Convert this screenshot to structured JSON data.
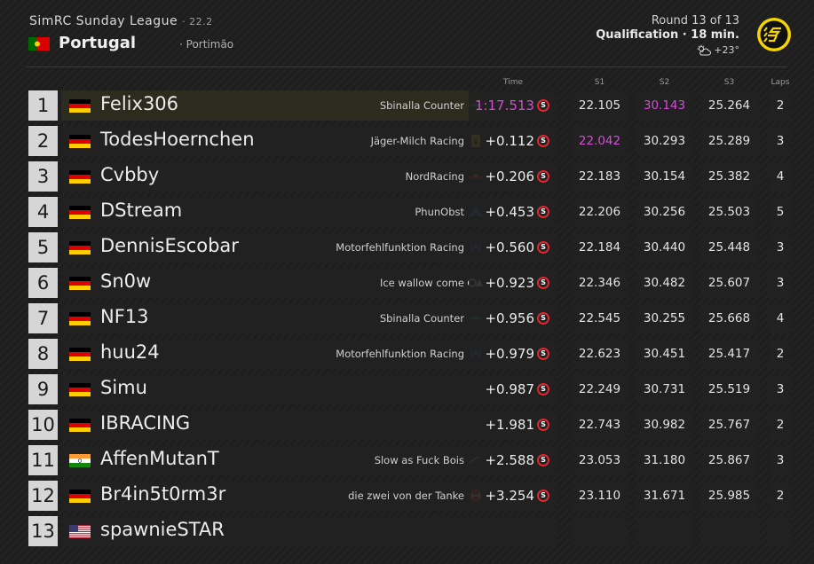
{
  "header": {
    "league": "SimRC Sunday League",
    "version": "· 22.2",
    "track": "Portugal",
    "city": "· Portimão",
    "round": "Round 13 of 13",
    "session": "Qualification · 18 min.",
    "temperature": "+23°",
    "weather_icon": "partly-cloudy-icon",
    "logo": "s-logo"
  },
  "columns": {
    "time": "Time",
    "s1": "S1",
    "s2": "S2",
    "s3": "S3",
    "laps": "Laps"
  },
  "colors": {
    "purple": "#d54bd8",
    "tyre_soft": "#e0262f",
    "logo_yellow": "#f5d400"
  },
  "tyre_label": "S",
  "rows": [
    {
      "pos": "1",
      "flag": "de",
      "driver": "Felix306",
      "team": "Sbinalla Counter",
      "team_logo": "aston-martin",
      "time": "1:17.513",
      "time_purple": true,
      "s1": "22.105",
      "s2": "30.143",
      "s2_purple": true,
      "s3": "25.264",
      "laps": "2"
    },
    {
      "pos": "2",
      "flag": "de",
      "driver": "TodesHoernchen",
      "team": "Jäger-Milch Racing",
      "team_logo": "ferrari",
      "time": "+0.112",
      "s1": "22.042",
      "s1_purple": true,
      "s2": "30.293",
      "s3": "25.289",
      "laps": "3"
    },
    {
      "pos": "3",
      "flag": "de",
      "driver": "Cvbby",
      "team": "NordRacing",
      "team_logo": "red-bull",
      "time": "+0.206",
      "s1": "22.183",
      "s2": "30.154",
      "s3": "25.382",
      "laps": "4"
    },
    {
      "pos": "4",
      "flag": "de",
      "driver": "DStream",
      "team": "PhunObst",
      "team_logo": "alpine",
      "time": "+0.453",
      "s1": "22.206",
      "s2": "30.256",
      "s3": "25.503",
      "laps": "5"
    },
    {
      "pos": "5",
      "flag": "de",
      "driver": "DennisEscobar",
      "team": "Motorfehlfunktion Racing",
      "team_logo": "williams",
      "time": "+0.560",
      "s1": "22.184",
      "s2": "30.440",
      "s3": "25.448",
      "laps": "3"
    },
    {
      "pos": "6",
      "flag": "de",
      "driver": "Sn0w",
      "team": "Ice wallow come",
      "team_logo": "alphatauri",
      "time": "+0.923",
      "s1": "22.346",
      "s2": "30.482",
      "s3": "25.607",
      "laps": "3"
    },
    {
      "pos": "7",
      "flag": "de",
      "driver": "NF13",
      "team": "Sbinalla Counter",
      "team_logo": "aston-martin",
      "time": "+0.956",
      "s1": "22.545",
      "s2": "30.255",
      "s3": "25.668",
      "laps": "4"
    },
    {
      "pos": "8",
      "flag": "de",
      "driver": "huu24",
      "team": "Motorfehlfunktion Racing",
      "team_logo": "williams",
      "time": "+0.979",
      "s1": "22.623",
      "s2": "30.451",
      "s3": "25.417",
      "laps": "2"
    },
    {
      "pos": "9",
      "flag": "de",
      "driver": "Simu",
      "team": "",
      "team_logo": "",
      "time": "+0.987",
      "s1": "22.249",
      "s2": "30.731",
      "s3": "25.519",
      "laps": "3"
    },
    {
      "pos": "10",
      "flag": "de",
      "driver": "IBRACING",
      "team": "",
      "team_logo": "",
      "time": "+1.981",
      "s1": "22.743",
      "s2": "30.982",
      "s3": "25.767",
      "laps": "2"
    },
    {
      "pos": "11",
      "flag": "in",
      "driver": "AffenMutanT",
      "team": "Slow as Fuck Bois",
      "team_logo": "mclaren",
      "time": "+2.588",
      "s1": "23.053",
      "s2": "31.180",
      "s3": "25.867",
      "laps": "3"
    },
    {
      "pos": "12",
      "flag": "de",
      "driver": "Br4in5t0rm3r",
      "team": "die zwei von der Tanke",
      "team_logo": "haas",
      "time": "+3.254",
      "s1": "23.110",
      "s2": "31.671",
      "s3": "25.985",
      "laps": "2"
    },
    {
      "pos": "13",
      "flag": "us",
      "driver": "spawnieSTAR",
      "team": "",
      "team_logo": "",
      "time": "",
      "s1": "",
      "s2": "",
      "s3": "",
      "laps": ""
    }
  ]
}
